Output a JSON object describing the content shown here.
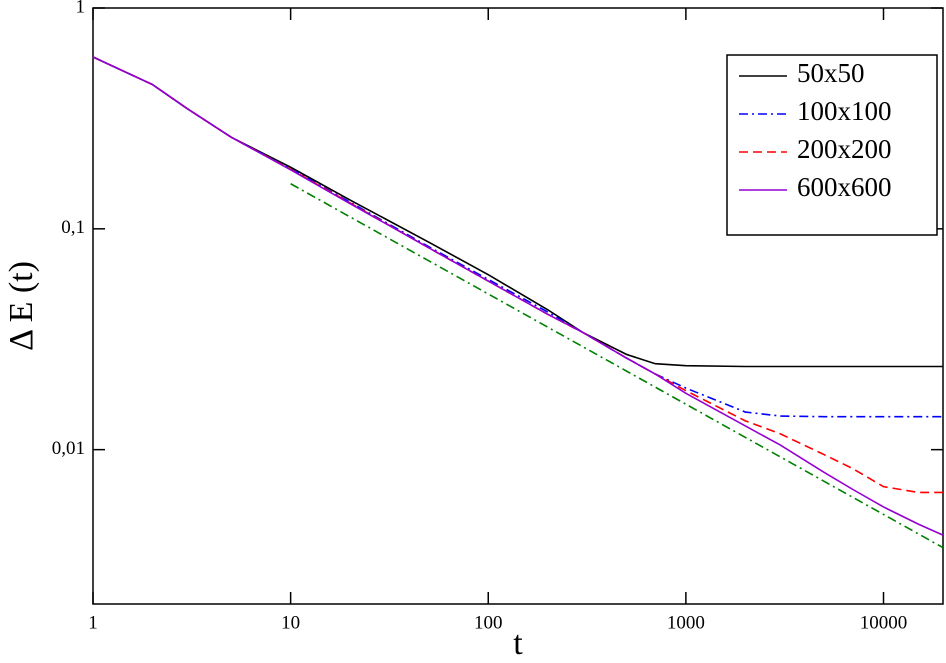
{
  "chart_data": {
    "type": "line",
    "x_label": "t",
    "y_label": "Δ E (t)",
    "log_x": true,
    "log_y": true,
    "xlim": [
      1,
      20000
    ],
    "ylim": [
      0.002,
      1
    ],
    "xticks": [
      1,
      10,
      100,
      1000,
      10000
    ],
    "yticks": [
      {
        "value": 0.01,
        "label": "0,01"
      },
      {
        "value": 0.1,
        "label": "0,1"
      },
      1
    ],
    "x": [
      1,
      2,
      3,
      5,
      10,
      20,
      50,
      100,
      200,
      300,
      500,
      700,
      1000,
      2000,
      3000,
      5000,
      7000,
      10000,
      15000,
      20000
    ],
    "series": [
      {
        "name": "50x50",
        "color": "#000000",
        "dash": "solid",
        "values": [
          0.6,
          0.45,
          0.35,
          0.26,
          0.19,
          0.135,
          0.087,
          0.062,
          0.043,
          0.034,
          0.027,
          0.0245,
          0.024,
          0.0238,
          0.0238,
          0.0238,
          0.0238,
          0.0238,
          0.0238,
          0.0238
        ]
      },
      {
        "name": "100x100",
        "color": "#0000ff",
        "dash": "dash-dot",
        "values": [
          0.6,
          0.45,
          0.35,
          0.26,
          0.187,
          0.132,
          0.083,
          0.059,
          0.042,
          0.034,
          0.026,
          0.022,
          0.019,
          0.0148,
          0.0142,
          0.0141,
          0.0141,
          0.0141,
          0.0141,
          0.0141
        ]
      },
      {
        "name": "200x200",
        "color": "#ff0000",
        "dash": "dashed",
        "values": [
          0.6,
          0.45,
          0.35,
          0.26,
          0.186,
          0.131,
          0.082,
          0.058,
          0.041,
          0.034,
          0.026,
          0.022,
          0.0185,
          0.0135,
          0.0118,
          0.0095,
          0.0082,
          0.0068,
          0.0064,
          0.0064
        ]
      },
      {
        "name": "600x600",
        "color": "#9400d3",
        "dash": "solid",
        "values": [
          0.6,
          0.45,
          0.35,
          0.26,
          0.185,
          0.13,
          0.082,
          0.058,
          0.041,
          0.034,
          0.026,
          0.022,
          0.018,
          0.0128,
          0.0105,
          0.0079,
          0.0066,
          0.0055,
          0.0046,
          0.0041
        ]
      }
    ],
    "reference_line": {
      "color": "#008000",
      "dash": "dash-dot",
      "x": [
        10,
        20000
      ],
      "values": [
        0.16,
        0.0036
      ]
    },
    "legend": "upper right"
  }
}
